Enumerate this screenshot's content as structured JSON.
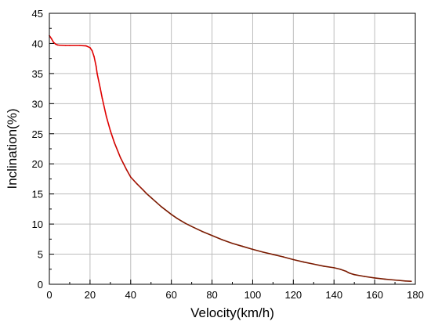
{
  "chart_data": {
    "type": "line",
    "title": "",
    "xlabel": "Velocity(km/h)",
    "ylabel": "Inclination(%)",
    "xlim": [
      0,
      180
    ],
    "ylim": [
      0,
      45
    ],
    "xticks": [
      0,
      20,
      40,
      60,
      80,
      100,
      120,
      140,
      160,
      180
    ],
    "yticks": [
      0,
      5,
      10,
      15,
      20,
      25,
      30,
      35,
      40,
      45
    ],
    "grid": true,
    "series": [
      {
        "color_start": "#e00000",
        "color_end": "#7a1a00",
        "x": [
          0,
          1,
          2,
          3,
          4,
          5,
          8,
          10,
          15,
          18,
          20,
          21,
          22,
          23,
          23.5,
          24,
          25,
          26,
          28,
          30,
          32,
          35,
          38,
          40,
          43,
          46,
          48,
          50,
          55,
          60,
          63,
          67,
          70,
          75,
          80,
          85,
          90,
          95,
          100,
          105,
          110,
          115,
          120,
          125,
          130,
          135,
          140,
          143,
          146,
          147,
          148,
          150,
          155,
          160,
          165,
          170,
          175,
          178
        ],
        "y": [
          41.3,
          40.8,
          40.2,
          39.9,
          39.75,
          39.7,
          39.65,
          39.65,
          39.65,
          39.6,
          39.3,
          38.8,
          37.8,
          36.2,
          35.0,
          34.2,
          32.6,
          30.9,
          27.9,
          25.5,
          23.5,
          21.0,
          19.0,
          17.8,
          16.7,
          15.7,
          15.0,
          14.4,
          12.9,
          11.6,
          10.9,
          10.1,
          9.6,
          8.8,
          8.1,
          7.4,
          6.8,
          6.3,
          5.8,
          5.35,
          4.95,
          4.55,
          4.1,
          3.7,
          3.35,
          3.0,
          2.75,
          2.5,
          2.15,
          1.95,
          1.8,
          1.6,
          1.3,
          1.05,
          0.85,
          0.7,
          0.55,
          0.5
        ]
      }
    ]
  }
}
